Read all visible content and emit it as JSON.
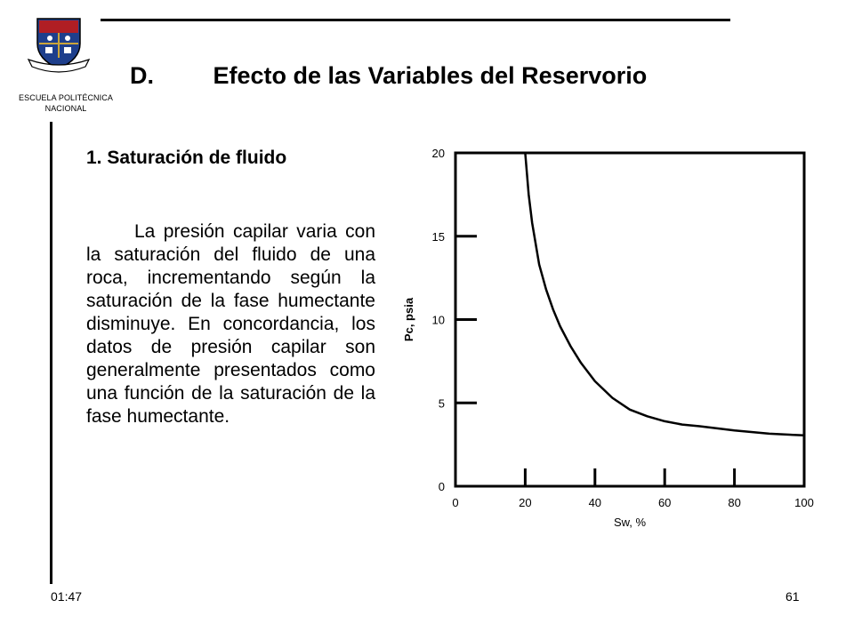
{
  "header": {
    "institution_name": "ESCUELA POLITÉCNICA NACIONAL",
    "title_letter": "D.",
    "title_text": "Efecto de las Variables del Reservorio"
  },
  "content": {
    "subtitle": "1. Saturación de fluido",
    "paragraph": "La presión capilar varia con la saturación del fluido de una roca, incrementando según la saturación de la fase humectante disminuye. En concordancia, los datos de presión capilar son generalmente presentados como una función de la saturación de la fase humectante."
  },
  "footer": {
    "time": "01:47",
    "page_number": "61"
  },
  "colors": {
    "logo_blue": "#1e3f8c",
    "logo_red": "#b01e24",
    "logo_gold": "#caa53a"
  },
  "chart_data": {
    "type": "line",
    "xlabel": "Sw, %",
    "ylabel": "Pc, psia",
    "xlim": [
      0,
      100
    ],
    "ylim": [
      0,
      20
    ],
    "x_ticks": [
      "0",
      "20",
      "40",
      "60",
      "80",
      "100"
    ],
    "y_ticks": [
      "0",
      "5",
      "10",
      "15",
      "20"
    ],
    "grid": false,
    "series": [
      {
        "x": [
          20,
          21,
          22,
          24,
          26,
          28,
          30,
          33,
          36,
          40,
          45,
          50,
          55,
          60,
          65,
          70,
          80,
          90,
          100
        ],
        "y": [
          20,
          17.5,
          15.8,
          13.3,
          11.8,
          10.6,
          9.6,
          8.4,
          7.4,
          6.3,
          5.3,
          4.6,
          4.2,
          3.9,
          3.7,
          3.6,
          3.35,
          3.15,
          3.05
        ]
      }
    ]
  }
}
